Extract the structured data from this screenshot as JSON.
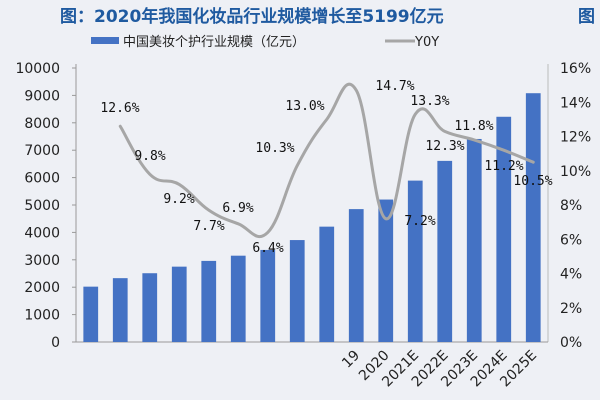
{
  "title": "图：2020年我国化妆品行业规模增长至5199亿元",
  "title_cut": "图",
  "chart_data": {
    "type": "bar+line",
    "title": "图：2020年我国化妆品行业规模增长至5199亿元",
    "categories": [
      "",
      "",
      "",
      "",
      "",
      "",
      "",
      "",
      "",
      "19",
      "2020",
      "2021E",
      "2022E",
      "2023E",
      "2024E",
      "2025E"
    ],
    "series": [
      {
        "name": "中国美妆个护行业规模（亿元）",
        "type": "bar",
        "axis": "left",
        "color": "#4472c4",
        "values": [
          2020,
          2330,
          2510,
          2750,
          2960,
          3150,
          3360,
          3720,
          4210,
          4850,
          5199,
          5890,
          6610,
          7410,
          8220,
          9080
        ]
      },
      {
        "name": "Y0Y",
        "type": "line",
        "axis": "right",
        "color": "#a6a6a6",
        "values": [
          null,
          12.6,
          9.8,
          9.2,
          7.7,
          6.9,
          6.4,
          10.3,
          13.0,
          14.7,
          7.2,
          13.3,
          12.3,
          11.8,
          11.2,
          10.5
        ],
        "labels": [
          "",
          "12.6%",
          "9.8%",
          "9.2%",
          "7.7%",
          "6.9%",
          "6.4%",
          "10.3%",
          "13.0%",
          "14.7%",
          "7.2%",
          "13.3%",
          "12.3%",
          "11.8%",
          "11.2%",
          "10.5%"
        ]
      }
    ],
    "y_left": {
      "min": 0,
      "max": 10000,
      "step": 1000,
      "ticks": [
        "0",
        "1000",
        "2000",
        "3000",
        "4000",
        "5000",
        "6000",
        "7000",
        "8000",
        "9000",
        "10000"
      ]
    },
    "y_right": {
      "min": 0,
      "max": 16,
      "step": 2,
      "ticks": [
        "0%",
        "2%",
        "4%",
        "6%",
        "8%",
        "10%",
        "12%",
        "14%",
        "16%"
      ]
    },
    "grid": false,
    "legend": "top"
  }
}
